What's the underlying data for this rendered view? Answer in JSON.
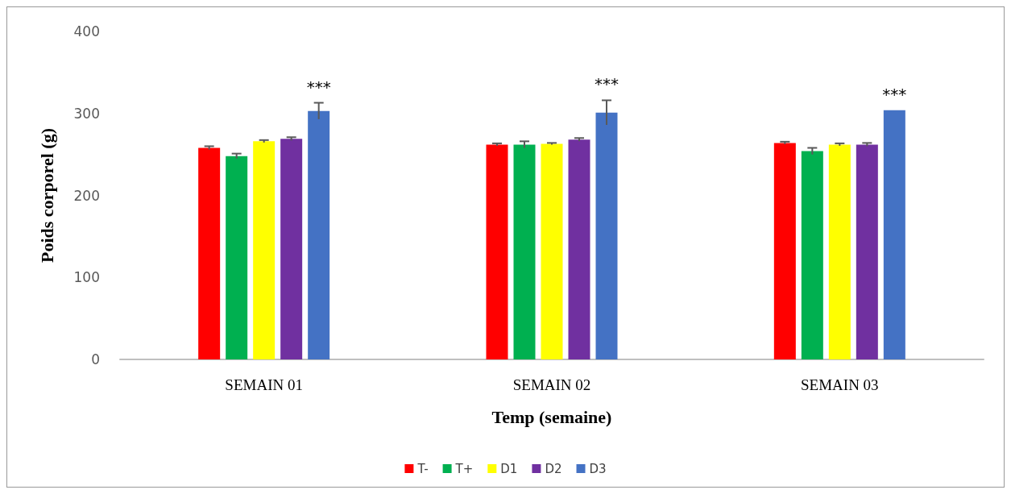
{
  "chart_data": {
    "type": "bar",
    "xlabel": "Temp (semaine)",
    "ylabel": "Poids corporel (g)",
    "categories": [
      "SEMAIN 01",
      "SEMAIN 02",
      "SEMAIN 03"
    ],
    "series": [
      {
        "name": "T-",
        "color": "#ff0000",
        "values": [
          258,
          262,
          264
        ],
        "errors": [
          2,
          1.5,
          1.5
        ]
      },
      {
        "name": "T+",
        "color": "#00b050",
        "values": [
          248,
          262,
          254
        ],
        "errors": [
          3,
          4,
          4
        ]
      },
      {
        "name": "D1",
        "color": "#ffff00",
        "values": [
          266,
          263,
          262
        ],
        "errors": [
          1.5,
          1,
          1.5
        ]
      },
      {
        "name": "D2",
        "color": "#7030a0",
        "values": [
          269,
          268,
          262
        ],
        "errors": [
          2,
          2,
          2
        ]
      },
      {
        "name": "D3",
        "color": "#4472c4",
        "values": [
          303,
          301,
          304
        ],
        "errors": [
          10,
          15,
          null
        ]
      }
    ],
    "ylim": [
      0,
      400
    ],
    "yticks": [
      0,
      100,
      200,
      300,
      400
    ],
    "grid": false,
    "legend": "bottom",
    "annotations": [
      "***",
      "***",
      "***"
    ]
  }
}
